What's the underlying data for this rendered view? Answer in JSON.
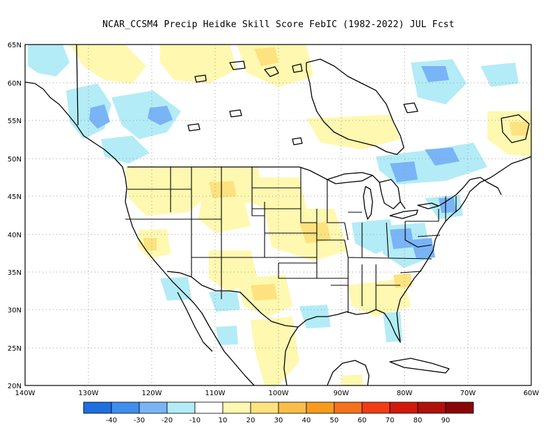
{
  "title": "NCAR_CCSM4 Precip Heidke Skill Score FebIC (1982-2022) JUL Fcst",
  "lat_ticks": [
    "65N",
    "60N",
    "55N",
    "50N",
    "45N",
    "40N",
    "35N",
    "30N",
    "25N",
    "20N"
  ],
  "lon_ticks": [
    "140W",
    "130W",
    "120W",
    "110W",
    "100W",
    "90W",
    "80W",
    "70W",
    "60W"
  ],
  "colorbar": {
    "labels": [
      "-40",
      "-30",
      "-20",
      "-10",
      "10",
      "20",
      "30",
      "40",
      "50",
      "60",
      "70",
      "80",
      "90"
    ],
    "colors": [
      "#1f6fe0",
      "#3f8ff0",
      "#79b4f6",
      "#b3ecf6",
      "#ffffff",
      "#fff8b0",
      "#fde27f",
      "#fbbd49",
      "#f89b1c",
      "#f6711b",
      "#f13c16",
      "#d11a0c",
      "#b1110b",
      "#8a0606"
    ]
  },
  "colors": {
    "neg_light": "#b3ecf6",
    "neg_mid": "#79b4f6",
    "pos_light": "#fff8b0",
    "pos_mid": "#fde27f",
    "border": "#000000",
    "grid": "#999999"
  }
}
